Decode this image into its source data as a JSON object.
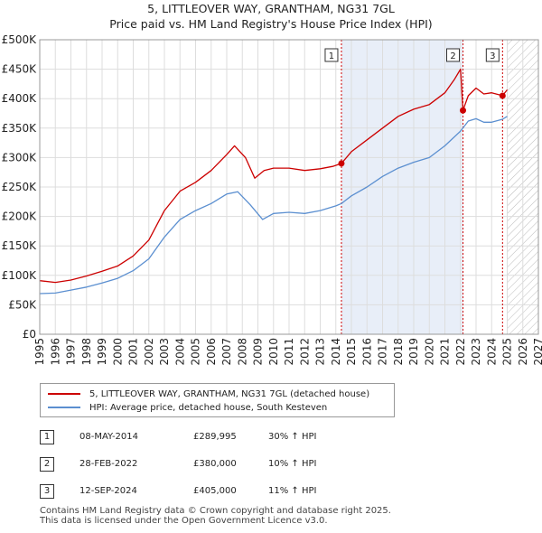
{
  "title_line1": "5, LITTLEOVER WAY, GRANTHAM, NG31 7GL",
  "title_line2": "Price paid vs. HM Land Registry's House Price Index (HPI)",
  "chart_data": {
    "type": "line",
    "title": "Price paid vs. HM Land Registry's House Price Index (HPI)",
    "xlabel": "",
    "ylabel": "",
    "xlim": [
      1995,
      2027
    ],
    "ylim": [
      0,
      500000
    ],
    "y_ticks": [
      {
        "value": 0,
        "label": "£0"
      },
      {
        "value": 50000,
        "label": "£50K"
      },
      {
        "value": 100000,
        "label": "£100K"
      },
      {
        "value": 150000,
        "label": "£150K"
      },
      {
        "value": 200000,
        "label": "£200K"
      },
      {
        "value": 250000,
        "label": "£250K"
      },
      {
        "value": 300000,
        "label": "£300K"
      },
      {
        "value": 350000,
        "label": "£350K"
      },
      {
        "value": 400000,
        "label": "£400K"
      },
      {
        "value": 450000,
        "label": "£450K"
      },
      {
        "value": 500000,
        "label": "£500K"
      }
    ],
    "x_ticks": [
      "1995",
      "1996",
      "1997",
      "1998",
      "1999",
      "2000",
      "2001",
      "2002",
      "2003",
      "2004",
      "2005",
      "2006",
      "2007",
      "2008",
      "2009",
      "2010",
      "2011",
      "2012",
      "2013",
      "2014",
      "2015",
      "2016",
      "2017",
      "2018",
      "2019",
      "2020",
      "2021",
      "2022",
      "2023",
      "2024",
      "2025",
      "2026",
      "2027"
    ],
    "grid": true,
    "shaded_regions": [
      {
        "from": 2014.36,
        "to": 2022.16,
        "kind": "between-sales"
      },
      {
        "from": 2025.0,
        "to": 2027.0,
        "kind": "forecast-hatched"
      }
    ],
    "series": [
      {
        "name": "5, LITTLEOVER WAY, GRANTHAM, NG31 7GL (detached house)",
        "color": "#cc0000",
        "points": [
          [
            1995.0,
            91000
          ],
          [
            1996.0,
            88000
          ],
          [
            1997.0,
            92000
          ],
          [
            1998.0,
            99000
          ],
          [
            1999.0,
            107000
          ],
          [
            2000.0,
            116000
          ],
          [
            2001.0,
            133000
          ],
          [
            2002.0,
            160000
          ],
          [
            2003.0,
            210000
          ],
          [
            2004.0,
            243000
          ],
          [
            2005.0,
            258000
          ],
          [
            2006.0,
            278000
          ],
          [
            2007.0,
            305000
          ],
          [
            2007.5,
            320000
          ],
          [
            2008.2,
            300000
          ],
          [
            2008.8,
            265000
          ],
          [
            2009.4,
            278000
          ],
          [
            2010.0,
            282000
          ],
          [
            2011.0,
            282000
          ],
          [
            2012.0,
            278000
          ],
          [
            2013.0,
            281000
          ],
          [
            2013.8,
            285000
          ],
          [
            2014.36,
            289995
          ],
          [
            2015.0,
            310000
          ],
          [
            2016.0,
            330000
          ],
          [
            2017.0,
            350000
          ],
          [
            2018.0,
            370000
          ],
          [
            2019.0,
            382000
          ],
          [
            2020.0,
            390000
          ],
          [
            2021.0,
            410000
          ],
          [
            2021.6,
            432000
          ],
          [
            2022.0,
            450000
          ],
          [
            2022.16,
            380000
          ],
          [
            2022.5,
            405000
          ],
          [
            2023.0,
            418000
          ],
          [
            2023.5,
            408000
          ],
          [
            2024.0,
            410000
          ],
          [
            2024.7,
            405000
          ],
          [
            2025.0,
            415000
          ]
        ]
      },
      {
        "name": "HPI: Average price, detached house, South Kesteven",
        "color": "#5b8fd0",
        "points": [
          [
            1995.0,
            69000
          ],
          [
            1996.0,
            70000
          ],
          [
            1997.0,
            75000
          ],
          [
            1998.0,
            80000
          ],
          [
            1999.0,
            87000
          ],
          [
            2000.0,
            95000
          ],
          [
            2001.0,
            108000
          ],
          [
            2002.0,
            128000
          ],
          [
            2003.0,
            165000
          ],
          [
            2004.0,
            195000
          ],
          [
            2005.0,
            210000
          ],
          [
            2006.0,
            222000
          ],
          [
            2007.0,
            238000
          ],
          [
            2007.7,
            242000
          ],
          [
            2008.5,
            220000
          ],
          [
            2009.3,
            195000
          ],
          [
            2010.0,
            205000
          ],
          [
            2011.0,
            207000
          ],
          [
            2012.0,
            205000
          ],
          [
            2013.0,
            210000
          ],
          [
            2014.0,
            218000
          ],
          [
            2014.36,
            222000
          ],
          [
            2015.0,
            235000
          ],
          [
            2016.0,
            250000
          ],
          [
            2017.0,
            268000
          ],
          [
            2018.0,
            282000
          ],
          [
            2019.0,
            292000
          ],
          [
            2020.0,
            300000
          ],
          [
            2021.0,
            320000
          ],
          [
            2022.0,
            345000
          ],
          [
            2022.5,
            362000
          ],
          [
            2023.0,
            366000
          ],
          [
            2023.5,
            360000
          ],
          [
            2024.0,
            360000
          ],
          [
            2024.7,
            365000
          ],
          [
            2025.0,
            370000
          ]
        ]
      }
    ],
    "sales": [
      {
        "label": "1",
        "x": 2014.36,
        "price": 289995
      },
      {
        "label": "2",
        "x": 2022.16,
        "price": 380000
      },
      {
        "label": "3",
        "x": 2024.7,
        "price": 405000
      }
    ]
  },
  "legend": {
    "series1_label": "5, LITTLEOVER WAY, GRANTHAM, NG31 7GL (detached house)",
    "series1_color": "#cc0000",
    "series2_label": "HPI: Average price, detached house, South Kesteven",
    "series2_color": "#5b8fd0"
  },
  "transactions": [
    {
      "num": "1",
      "date": "08-MAY-2014",
      "price": "£289,995",
      "hpi": "30% ↑ HPI"
    },
    {
      "num": "2",
      "date": "28-FEB-2022",
      "price": "£380,000",
      "hpi": "10% ↑ HPI"
    },
    {
      "num": "3",
      "date": "12-SEP-2024",
      "price": "£405,000",
      "hpi": "11% ↑ HPI"
    }
  ],
  "footer": {
    "line1": "Contains HM Land Registry data © Crown copyright and database right 2025.",
    "line2": "This data is licensed under the Open Government Licence v3.0."
  }
}
